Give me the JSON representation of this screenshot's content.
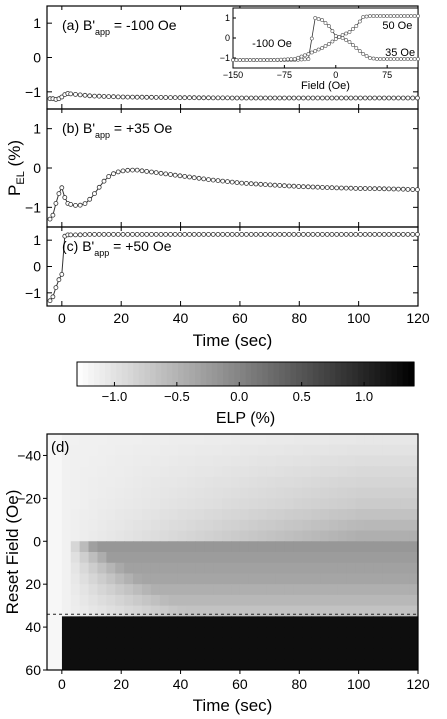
{
  "chart_data": [
    {
      "type": "line",
      "panel": "a",
      "label_text": "(a) B",
      "label_sub": "app",
      "label_value": " = -100 Oe",
      "xlim": [
        -5,
        120
      ],
      "ylim": [
        -1.5,
        1.5
      ],
      "yticks": [
        -1,
        0,
        1
      ],
      "series": [
        {
          "x": [
            -3,
            -2,
            -1,
            0,
            1,
            2,
            5,
            10,
            20,
            40,
            60,
            80,
            100,
            120
          ],
          "y": [
            -1.2,
            -1.22,
            -1.2,
            -1.15,
            -1.08,
            -1.05,
            -1.08,
            -1.12,
            -1.15,
            -1.17,
            -1.18,
            -1.18,
            -1.18,
            -1.18
          ]
        }
      ],
      "inset": {
        "xlabel": "Field (Oe)",
        "xticks": [
          -150,
          -75,
          0,
          75
        ],
        "yticks": [
          -1,
          0,
          1
        ],
        "xlim": [
          -150,
          120
        ],
        "ylim": [
          -1.5,
          1.5
        ],
        "annotations": [
          "-100 Oe",
          "50 Oe",
          "35 Oe"
        ],
        "series": [
          {
            "x": [
              -150,
              -120,
              -90,
              -60,
              -40,
              -30,
              -20,
              -10,
              0,
              10,
              20,
              30,
              40,
              50,
              60,
              90,
              120
            ],
            "y": [
              -1.1,
              -1.1,
              -1.1,
              -1.1,
              -1.05,
              1.0,
              0.9,
              0.6,
              0.1,
              0.0,
              -0.2,
              -0.5,
              -0.8,
              -1.0,
              -1.05,
              -1.05,
              -1.05
            ]
          },
          {
            "x": [
              -150,
              -120,
              -90,
              -60,
              -40,
              -20,
              -10,
              0,
              10,
              20,
              30,
              40,
              50,
              60,
              90,
              120
            ],
            "y": [
              -1.1,
              -1.1,
              -1.1,
              -1.05,
              -0.8,
              -0.5,
              -0.3,
              -0.05,
              0.15,
              0.3,
              0.6,
              1.05,
              1.1,
              1.1,
              1.1,
              1.1
            ]
          }
        ]
      }
    },
    {
      "type": "line",
      "panel": "b",
      "label_text": "(b) B",
      "label_sub": "app",
      "label_value": " = +35 Oe",
      "ylabel": "P",
      "ylabel_sub": "EL",
      "ylabel_unit": " (%)",
      "xlim": [
        -5,
        120
      ],
      "ylim": [
        -1.5,
        1.5
      ],
      "yticks": [
        -1,
        0,
        1
      ],
      "series": [
        {
          "x": [
            -4,
            -3,
            -2,
            -1,
            0,
            1,
            2,
            4,
            6,
            8,
            10,
            12,
            14,
            16,
            18,
            20,
            22,
            25,
            30,
            40,
            50,
            60,
            70,
            80,
            90,
            100,
            110,
            120
          ],
          "y": [
            -1.3,
            -1.2,
            -0.9,
            -0.65,
            -0.5,
            -0.75,
            -0.9,
            -0.95,
            -0.95,
            -0.9,
            -0.75,
            -0.55,
            -0.35,
            -0.2,
            -0.12,
            -0.08,
            -0.06,
            -0.05,
            -0.1,
            -0.2,
            -0.3,
            -0.38,
            -0.43,
            -0.47,
            -0.5,
            -0.52,
            -0.53,
            -0.55
          ]
        }
      ]
    },
    {
      "type": "line",
      "panel": "c",
      "label_text": "(c) B",
      "label_sub": "app",
      "label_value": " = +50 Oe",
      "xlabel": "Time (sec)",
      "xlim": [
        -5,
        120
      ],
      "xticks": [
        0,
        20,
        40,
        60,
        80,
        100,
        120
      ],
      "ylim": [
        -1.5,
        1.5
      ],
      "yticks": [
        -1,
        0,
        1
      ],
      "series": [
        {
          "x": [
            -4,
            -3,
            -2,
            -1,
            0,
            1,
            2,
            5,
            10,
            20,
            40,
            60,
            80,
            100,
            120
          ],
          "y": [
            -1.3,
            -1.15,
            -0.8,
            -0.5,
            -0.3,
            1.15,
            1.2,
            1.2,
            1.22,
            1.22,
            1.22,
            1.22,
            1.22,
            1.22,
            1.22
          ]
        }
      ]
    },
    {
      "type": "heatmap",
      "panel": "d",
      "label_text": "(d)",
      "xlabel": "Time (sec)",
      "ylabel": "Reset Field (Oe)",
      "xlim": [
        -5,
        120
      ],
      "xticks": [
        0,
        20,
        40,
        60,
        80,
        100,
        120
      ],
      "ylim": [
        -50,
        60
      ],
      "yticks": [
        -40,
        -20,
        0,
        20,
        40,
        60
      ],
      "dashed_line_y": 34,
      "colorbar": {
        "label": "ELP (%)",
        "range": [
          -1.3,
          1.4
        ],
        "ticks": [
          -1.0,
          -0.5,
          0.0,
          0.5,
          1.0
        ],
        "tick_labels": [
          "-1.0",
          "-0.5",
          "0.0",
          "0.5",
          "1.0"
        ]
      },
      "rows": [
        {
          "field": -50,
          "late": -1.05
        },
        {
          "field": -45,
          "late": -1.0
        },
        {
          "field": -40,
          "late": -0.95
        },
        {
          "field": -35,
          "late": -0.9
        },
        {
          "field": -30,
          "late": -0.85
        },
        {
          "field": -25,
          "late": -0.8
        },
        {
          "field": -20,
          "late": -0.75
        },
        {
          "field": -15,
          "late": -0.65
        },
        {
          "field": -10,
          "late": -0.55
        },
        {
          "field": -5,
          "late": -0.45
        },
        {
          "field": 0,
          "late": -0.2
        },
        {
          "field": 5,
          "late": -0.25
        },
        {
          "field": 10,
          "late": -0.3
        },
        {
          "field": 15,
          "late": -0.35
        },
        {
          "field": 20,
          "late": -0.45
        },
        {
          "field": 25,
          "late": -0.55
        },
        {
          "field": 30,
          "late": -0.65
        },
        {
          "field": 35,
          "late": 1.25
        },
        {
          "field": 40,
          "late": 1.25
        },
        {
          "field": 45,
          "late": 1.25
        },
        {
          "field": 50,
          "late": 1.25
        },
        {
          "field": 55,
          "late": 1.25
        }
      ]
    }
  ],
  "colors": {
    "marker_stroke": "#333333",
    "axis": "#000000",
    "dash": "#222222"
  }
}
